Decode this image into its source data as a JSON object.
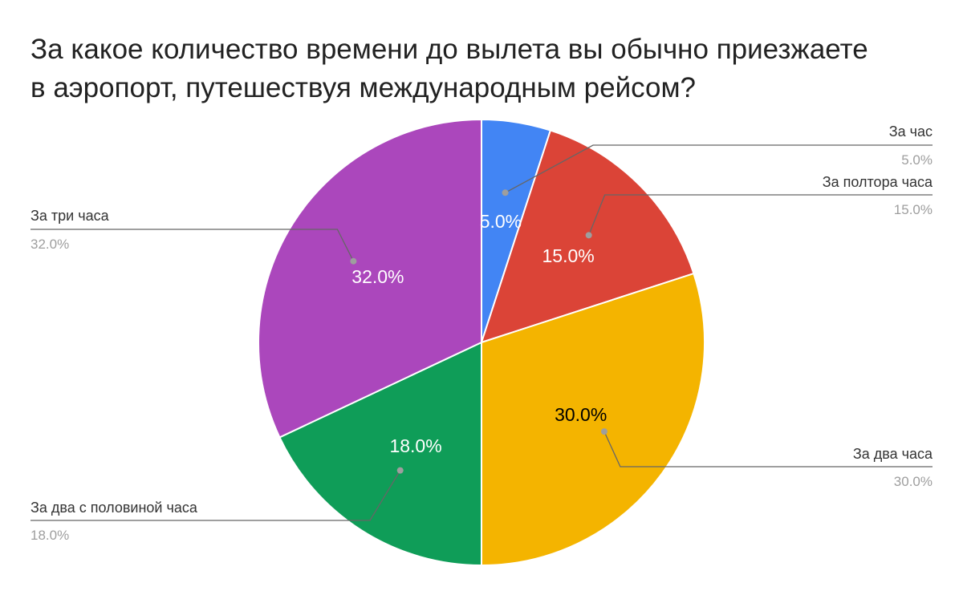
{
  "chart_data": {
    "type": "pie",
    "title_lines": [
      "За какое количество времени до вылета вы обычно приезжаете",
      "в аэропорт, путешествуя международным рейсом?"
    ],
    "slices": [
      {
        "label": "За час",
        "value": 5.0,
        "value_label": "5.0%",
        "color": "#4285f4",
        "text_color": "#ffffff"
      },
      {
        "label": "За полтора часа",
        "value": 15.0,
        "value_label": "15.0%",
        "color": "#db4437",
        "text_color": "#ffffff"
      },
      {
        "label": "За два часа",
        "value": 30.0,
        "value_label": "30.0%",
        "color": "#f4b400",
        "text_color": "#000000"
      },
      {
        "label": "За два с половиной часа",
        "value": 18.0,
        "value_label": "18.0%",
        "color": "#0f9d58",
        "text_color": "#ffffff"
      },
      {
        "label": "За три часа",
        "value": 32.0,
        "value_label": "32.0%",
        "color": "#ab47bc",
        "text_color": "#ffffff"
      }
    ],
    "start_angle": "12 o'clock",
    "direction": "clockwise",
    "legend": "callout labels"
  }
}
